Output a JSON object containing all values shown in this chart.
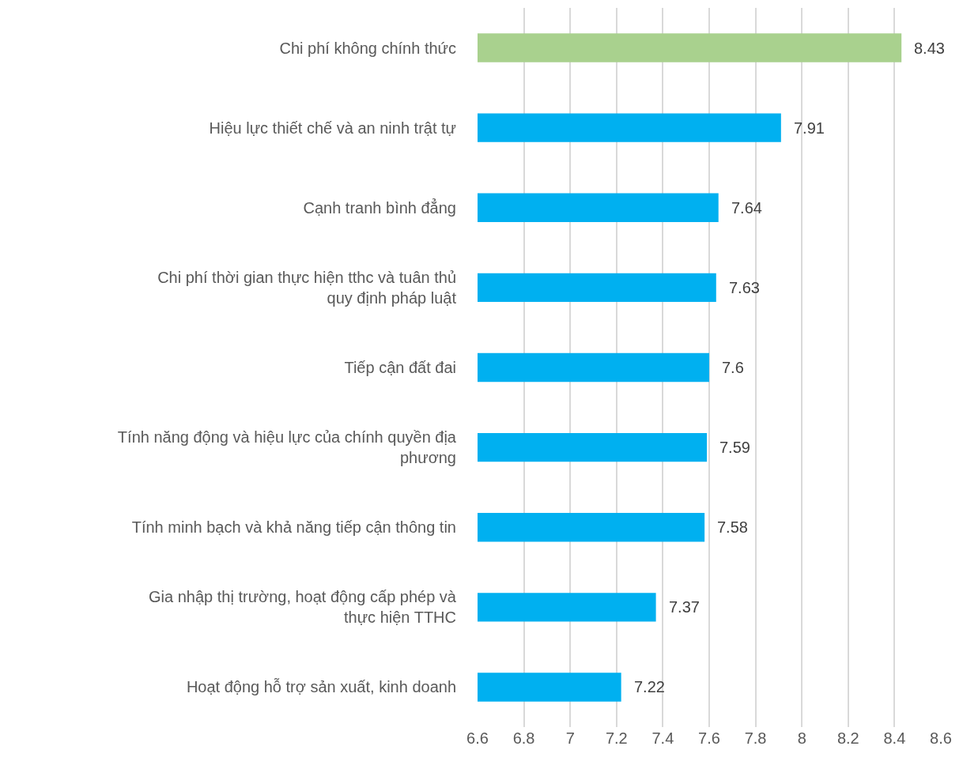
{
  "chart_data": {
    "type": "bar",
    "orientation": "horizontal",
    "categories": [
      "Chi phí không chính thức",
      "Hiệu lực thiết chế và an ninh trật tự",
      "Cạnh tranh bình đẳng",
      "Chi phí thời gian thực hiện tthc và tuân thủ quy định pháp luật",
      "Tiếp cận đất đai",
      "Tính năng động và hiệu lực của chính quyền địa phương",
      "Tính minh bạch và khả năng tiếp cận thông tin",
      "Gia nhập thị trường, hoạt động cấp phép và thực hiện TTHC",
      "Hoạt động hỗ trợ sản xuất, kinh doanh"
    ],
    "values": [
      8.43,
      7.91,
      7.64,
      7.63,
      7.6,
      7.59,
      7.58,
      7.37,
      7.22
    ],
    "colors": [
      "#a9d18e",
      "#00b0f0",
      "#00b0f0",
      "#00b0f0",
      "#00b0f0",
      "#00b0f0",
      "#00b0f0",
      "#00b0f0",
      "#00b0f0"
    ],
    "xlim": [
      6.6,
      8.6
    ],
    "xticks": [
      6.6,
      6.8,
      7,
      7.2,
      7.4,
      7.6,
      7.8,
      8,
      8.2,
      8.4,
      8.6
    ],
    "data_labels": true,
    "grid": "x"
  }
}
